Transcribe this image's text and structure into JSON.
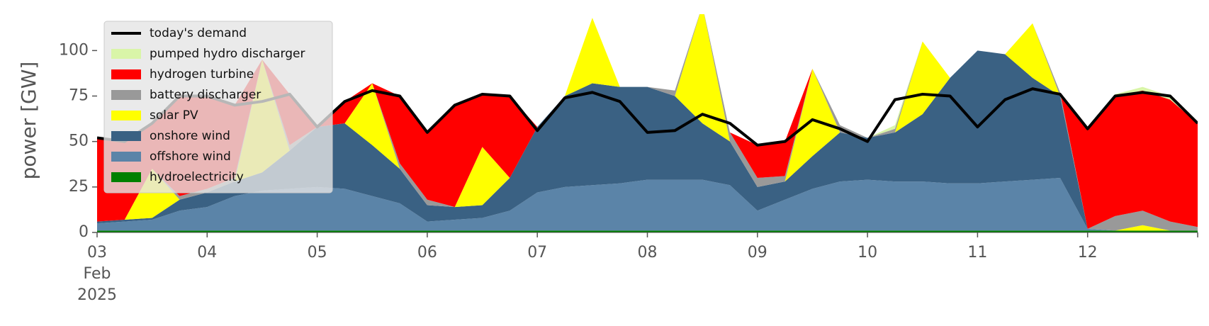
{
  "chart_data": {
    "type": "stacked_area",
    "ylabel": "power [GW]",
    "legend": "upper left",
    "x": [
      "2025-02-03T00:00",
      "2025-02-03T06:00",
      "2025-02-03T12:00",
      "2025-02-03T18:00",
      "2025-02-04T00:00",
      "2025-02-04T06:00",
      "2025-02-04T12:00",
      "2025-02-04T18:00",
      "2025-02-05T00:00",
      "2025-02-05T06:00",
      "2025-02-05T12:00",
      "2025-02-05T18:00",
      "2025-02-06T00:00",
      "2025-02-06T06:00",
      "2025-02-06T12:00",
      "2025-02-06T18:00",
      "2025-02-07T00:00",
      "2025-02-07T06:00",
      "2025-02-07T12:00",
      "2025-02-07T18:00",
      "2025-02-08T00:00",
      "2025-02-08T06:00",
      "2025-02-08T12:00",
      "2025-02-08T18:00",
      "2025-02-09T00:00",
      "2025-02-09T06:00",
      "2025-02-09T12:00",
      "2025-02-09T18:00",
      "2025-02-10T00:00",
      "2025-02-10T06:00",
      "2025-02-10T12:00",
      "2025-02-10T18:00",
      "2025-02-11T00:00",
      "2025-02-11T06:00",
      "2025-02-11T12:00",
      "2025-02-11T18:00",
      "2025-02-12T00:00",
      "2025-02-12T06:00",
      "2025-02-12T12:00",
      "2025-02-12T18:00",
      "2025-02-13T00:00"
    ],
    "xlim": [
      "2025-02-03T00:00",
      "2025-02-13T00:00"
    ],
    "xticks": [
      {
        "value": "2025-02-03T00:00",
        "label": "03\nFeb\n2025"
      },
      {
        "value": "2025-02-04T00:00",
        "label": "04"
      },
      {
        "value": "2025-02-05T00:00",
        "label": "05"
      },
      {
        "value": "2025-02-06T00:00",
        "label": "06"
      },
      {
        "value": "2025-02-07T00:00",
        "label": "07"
      },
      {
        "value": "2025-02-08T00:00",
        "label": "08"
      },
      {
        "value": "2025-02-09T00:00",
        "label": "09"
      },
      {
        "value": "2025-02-10T00:00",
        "label": "10"
      },
      {
        "value": "2025-02-11T00:00",
        "label": "11"
      },
      {
        "value": "2025-02-12T00:00",
        "label": "12"
      }
    ],
    "ylim": [
      0,
      120
    ],
    "yticks": [
      0,
      25,
      50,
      75,
      100
    ],
    "series": [
      {
        "name": "hydroelectricity",
        "color": "#008000",
        "values": [
          1,
          1,
          1,
          1,
          1,
          1,
          1,
          1,
          1,
          1,
          1,
          1,
          1,
          1,
          1,
          1,
          1,
          1,
          1,
          1,
          1,
          1,
          1,
          1,
          1,
          1,
          1,
          1,
          1,
          1,
          1,
          1,
          1,
          1,
          1,
          1,
          1,
          1,
          1,
          1,
          1
        ]
      },
      {
        "name": "offshore wind",
        "color": "#5b84a8",
        "values": [
          4,
          5,
          6,
          11,
          13,
          19,
          22,
          23,
          24,
          23,
          19,
          15,
          5,
          6,
          7,
          11,
          21,
          24,
          25,
          26,
          28,
          28,
          28,
          25,
          11,
          17,
          23,
          27,
          28,
          27,
          27,
          26,
          26,
          27,
          28,
          29,
          1,
          0,
          0,
          0,
          0
        ]
      },
      {
        "name": "onshore wind",
        "color": "#3a6183",
        "values": [
          1,
          1,
          1,
          6,
          8,
          8,
          10,
          21,
          33,
          36,
          28,
          19,
          9,
          7,
          7,
          18,
          36,
          50,
          56,
          53,
          51,
          46,
          31,
          24,
          13,
          10,
          18,
          27,
          23,
          27,
          37,
          58,
          73,
          70,
          56,
          45,
          0,
          0,
          0,
          0,
          0
        ]
      },
      {
        "name": "solar PV",
        "color": "#ffff00",
        "values": [
          0,
          0,
          27,
          0,
          0,
          0,
          62,
          0,
          0,
          0,
          34,
          0,
          0,
          0,
          32,
          0,
          0,
          0,
          36,
          0,
          0,
          0,
          65,
          0,
          0,
          0,
          48,
          0,
          0,
          0,
          40,
          0,
          0,
          0,
          30,
          0,
          0,
          0,
          3,
          0,
          0
        ]
      },
      {
        "name": "battery discharger",
        "color": "#999999",
        "values": [
          0,
          0,
          0,
          2,
          2,
          2,
          0,
          3,
          0,
          0,
          0,
          3,
          3,
          0,
          0,
          0,
          0,
          0,
          0,
          0,
          0,
          3,
          0,
          5,
          5,
          3,
          0,
          4,
          0,
          2,
          0,
          0,
          0,
          0,
          0,
          2,
          0,
          8,
          8,
          5,
          2
        ]
      },
      {
        "name": "hydrogen turbine",
        "color": "#ff0000",
        "values": [
          46,
          43,
          25,
          55,
          51,
          40,
          0,
          28,
          0,
          12,
          0,
          37,
          37,
          56,
          29,
          45,
          0,
          0,
          0,
          0,
          0,
          0,
          0,
          0,
          18,
          19,
          0,
          0,
          0,
          0,
          0,
          0,
          0,
          0,
          0,
          0,
          55,
          66,
          66,
          67,
          57
        ]
      },
      {
        "name": "pumped hydro discharger",
        "color": "#d9f5a8",
        "values": [
          0,
          0,
          0,
          0,
          0,
          0,
          0,
          0,
          0,
          0,
          0,
          0,
          0,
          0,
          0,
          0,
          0,
          0,
          0,
          0,
          0,
          0,
          0,
          0,
          0,
          0,
          0,
          0,
          0,
          2,
          0,
          0,
          0,
          0,
          0,
          0,
          0,
          1,
          2,
          2,
          0
        ]
      }
    ],
    "demand": {
      "name": "today's demand",
      "color": "#000000",
      "values": [
        52,
        50,
        60,
        75,
        75,
        70,
        72,
        76,
        58,
        72,
        78,
        75,
        55,
        70,
        76,
        75,
        56,
        74,
        77,
        72,
        55,
        56,
        65,
        60,
        48,
        50,
        62,
        57,
        50,
        73,
        76,
        75,
        58,
        73,
        79,
        76,
        57,
        75,
        77,
        75,
        60
      ]
    }
  }
}
